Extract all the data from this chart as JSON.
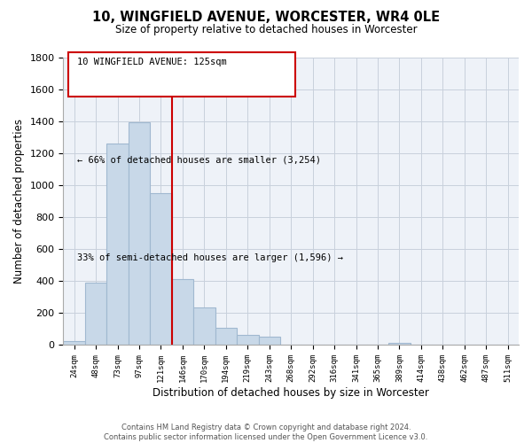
{
  "title": "10, WINGFIELD AVENUE, WORCESTER, WR4 0LE",
  "subtitle": "Size of property relative to detached houses in Worcester",
  "xlabel": "Distribution of detached houses by size in Worcester",
  "ylabel": "Number of detached properties",
  "bin_labels": [
    "24sqm",
    "48sqm",
    "73sqm",
    "97sqm",
    "121sqm",
    "146sqm",
    "170sqm",
    "194sqm",
    "219sqm",
    "243sqm",
    "268sqm",
    "292sqm",
    "316sqm",
    "341sqm",
    "365sqm",
    "389sqm",
    "414sqm",
    "438sqm",
    "462sqm",
    "487sqm",
    "511sqm"
  ],
  "bin_values": [
    25,
    390,
    1260,
    1395,
    950,
    415,
    235,
    110,
    65,
    50,
    0,
    0,
    0,
    0,
    0,
    15,
    0,
    0,
    0,
    0,
    0
  ],
  "bar_color_left": "#c8d8e8",
  "bar_color_right": "#c8d8e8",
  "bar_edge_color": "#a0b8d0",
  "property_line_color": "#cc0000",
  "ylim": [
    0,
    1800
  ],
  "yticks": [
    0,
    200,
    400,
    600,
    800,
    1000,
    1200,
    1400,
    1600,
    1800
  ],
  "annotation_text_line1": "10 WINGFIELD AVENUE: 125sqm",
  "annotation_text_line2": "← 66% of detached houses are smaller (3,254)",
  "annotation_text_line3": "33% of semi-detached houses are larger (1,596) →",
  "footer_line1": "Contains HM Land Registry data © Crown copyright and database right 2024.",
  "footer_line2": "Contains public sector information licensed under the Open Government Licence v3.0.",
  "background_color": "#ffffff",
  "grid_color": "#c8d0dc",
  "property_bin_index": 4
}
